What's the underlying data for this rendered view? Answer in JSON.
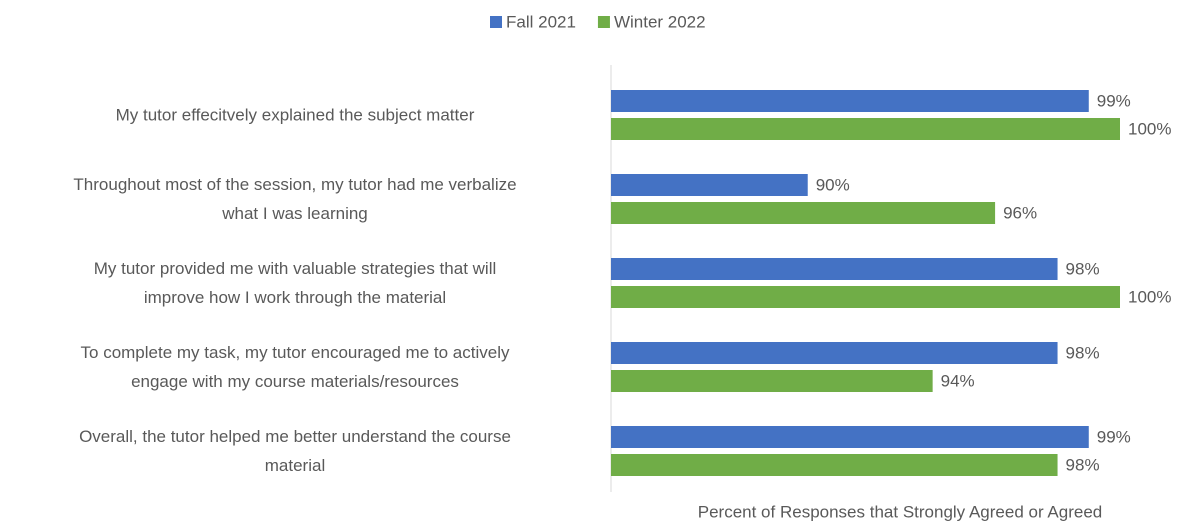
{
  "chart_data": {
    "type": "bar",
    "orientation": "horizontal",
    "categories": [
      "My tutor effecitvely explained the subject matter",
      "Throughout most of the session, my tutor had me verbalize\nwhat I was learning",
      "My tutor provided me with valuable strategies that will\nimprove how I work through the material",
      "To complete my task, my tutor encouraged me to actively\nengage with my course materials/resources",
      "Overall, the tutor helped me better understand the course\nmaterial"
    ],
    "series": [
      {
        "name": "Fall 2021",
        "color": "#4472c4",
        "values": [
          99,
          90,
          98,
          98,
          99
        ],
        "value_labels": [
          "99%",
          "90%",
          "98%",
          "98%",
          "99%"
        ]
      },
      {
        "name": "Winter 2022",
        "color": "#70ad47",
        "values": [
          100,
          96,
          100,
          94,
          98
        ],
        "value_labels": [
          "100%",
          "96%",
          "100%",
          "94%",
          "98%"
        ]
      }
    ],
    "xlabel": "Percent of Responses that Strongly Agreed or Agreed",
    "xlim": [
      83.7,
      100
    ],
    "legend": "top"
  }
}
